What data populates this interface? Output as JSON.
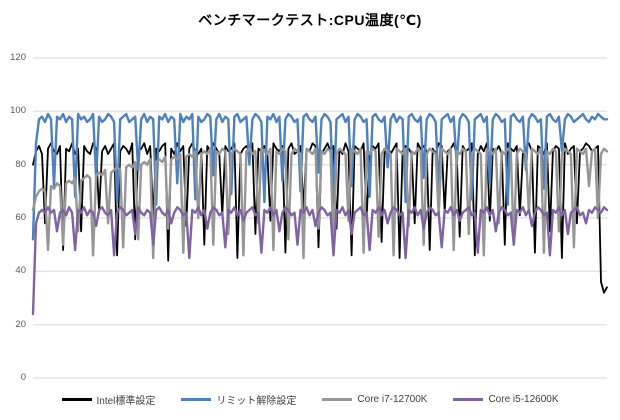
{
  "title": "ベンチマークテスト:CPU温度(℃)",
  "chart_data": {
    "type": "line",
    "title": "ベンチマークテスト:CPU温度(℃)",
    "xlabel": "",
    "ylabel": "",
    "ylim": [
      0,
      120
    ],
    "yticks": [
      0,
      20,
      40,
      60,
      80,
      100,
      120
    ],
    "x_tick_labels": [],
    "grid": "horizontal",
    "gridline_color": "#d9d9d9",
    "tick_label_color": "#595959",
    "legend_position": "bottom",
    "series": [
      {
        "name": "Intel標準設定",
        "color": "#000000",
        "values": [
          80,
          85,
          87,
          84,
          58,
          86,
          88,
          85,
          84,
          87,
          48,
          86,
          85,
          88,
          84,
          86,
          55,
          87,
          85,
          84,
          88,
          86,
          62,
          85,
          87,
          84,
          86,
          88,
          46,
          85,
          87,
          86,
          84,
          88,
          52,
          85,
          86,
          88,
          84,
          87,
          60,
          86,
          85,
          87,
          88,
          44,
          86,
          84,
          88,
          85,
          87,
          57,
          86,
          88,
          85,
          84,
          86,
          50,
          87,
          85,
          88,
          86,
          84,
          61,
          87,
          85,
          86,
          88,
          45,
          84,
          86,
          87,
          85,
          88,
          54,
          86,
          85,
          87,
          84,
          59,
          88,
          86,
          85,
          87,
          47,
          86,
          88,
          84,
          85,
          87,
          63,
          86,
          85,
          88,
          87,
          49,
          84,
          86,
          88,
          85,
          87,
          56,
          86,
          84,
          88,
          85,
          46,
          87,
          86,
          85,
          88,
          60,
          84,
          87,
          86,
          88,
          51,
          85,
          87,
          84,
          86,
          88,
          45,
          85,
          87,
          86,
          84,
          58,
          88,
          86,
          87,
          85,
          48,
          86,
          84,
          88,
          87,
          62,
          85,
          86,
          88,
          84,
          53,
          87,
          85,
          86,
          88,
          46,
          84,
          87,
          85,
          88,
          59,
          86,
          85,
          87,
          84,
          50,
          88,
          86,
          85,
          87,
          61,
          84,
          86,
          88,
          85,
          47,
          87,
          86,
          84,
          88,
          55,
          85,
          87,
          86,
          45,
          88,
          84,
          86,
          87,
          58,
          85,
          86,
          88,
          87,
          85,
          86,
          87,
          36,
          32,
          34
        ]
      },
      {
        "name": "リミット解除設定",
        "color": "#4f81bd",
        "values": [
          52,
          88,
          97,
          98,
          96,
          99,
          97,
          72,
          98,
          97,
          99,
          96,
          98,
          97,
          68,
          99,
          97,
          98,
          96,
          97,
          99,
          75,
          98,
          96,
          97,
          99,
          98,
          96,
          66,
          97,
          98,
          99,
          96,
          97,
          98,
          78,
          97,
          99,
          96,
          98,
          97,
          65,
          98,
          97,
          99,
          96,
          98,
          97,
          73,
          99,
          96,
          98,
          97,
          99,
          67,
          98,
          96,
          97,
          99,
          98,
          76,
          97,
          99,
          96,
          98,
          97,
          69,
          98,
          99,
          96,
          97,
          98,
          80,
          97,
          99,
          98,
          96,
          66,
          98,
          97,
          99,
          96,
          98,
          74,
          97,
          99,
          98,
          96,
          97,
          70,
          98,
          99,
          97,
          96,
          98,
          77,
          97,
          99,
          98,
          96,
          65,
          97,
          98,
          99,
          96,
          98,
          72,
          97,
          99,
          98,
          96,
          97,
          68,
          98,
          99,
          97,
          96,
          98,
          79,
          97,
          99,
          96,
          98,
          97,
          66,
          98,
          99,
          97,
          96,
          98,
          75,
          97,
          99,
          98,
          96,
          70,
          97,
          98,
          99,
          96,
          98,
          80,
          97,
          99,
          98,
          96,
          67,
          97,
          98,
          99,
          96,
          98,
          73,
          97,
          99,
          98,
          96,
          97,
          65,
          98,
          99,
          97,
          96,
          98,
          78,
          97,
          99,
          98,
          96,
          97,
          71,
          98,
          99,
          97,
          96,
          98,
          85,
          97,
          99,
          98,
          96,
          97,
          98,
          99,
          97,
          96,
          98,
          97,
          99,
          98,
          97,
          97
        ]
      },
      {
        "name": "Core i7-12700K",
        "color": "#969696",
        "values": [
          63,
          68,
          70,
          71,
          70,
          48,
          72,
          71,
          73,
          72,
          50,
          73,
          74,
          73,
          75,
          55,
          74,
          75,
          76,
          75,
          46,
          76,
          77,
          76,
          78,
          58,
          77,
          78,
          79,
          78,
          49,
          79,
          80,
          79,
          81,
          52,
          80,
          81,
          80,
          82,
          45,
          81,
          82,
          81,
          83,
          56,
          82,
          83,
          82,
          84,
          47,
          83,
          84,
          83,
          85,
          60,
          84,
          85,
          84,
          86,
          50,
          85,
          84,
          86,
          85,
          54,
          84,
          86,
          85,
          84,
          46,
          85,
          86,
          84,
          85,
          58,
          86,
          85,
          84,
          86,
          48,
          85,
          84,
          86,
          85,
          52,
          84,
          86,
          85,
          84,
          45,
          86,
          85,
          84,
          86,
          56,
          85,
          84,
          86,
          85,
          49,
          84,
          86,
          85,
          84,
          59,
          86,
          85,
          84,
          86,
          47,
          85,
          84,
          86,
          85,
          53,
          84,
          86,
          85,
          84,
          46,
          86,
          85,
          84,
          86,
          57,
          85,
          84,
          86,
          85,
          50,
          84,
          86,
          85,
          84,
          61,
          86,
          85,
          84,
          86,
          48,
          85,
          84,
          86,
          85,
          54,
          84,
          86,
          85,
          84,
          46,
          86,
          85,
          84,
          86,
          58,
          85,
          84,
          86,
          85,
          50,
          84,
          86,
          85,
          84,
          62,
          86,
          85,
          84,
          86,
          47,
          85,
          84,
          86,
          85,
          55,
          84,
          86,
          85,
          84,
          49,
          86,
          85,
          84,
          86,
          72,
          85,
          86,
          60,
          84,
          86,
          85
        ]
      },
      {
        "name": "Core i5-12600K",
        "color": "#8064a2",
        "values": [
          24,
          58,
          62,
          63,
          62,
          64,
          62,
          63,
          55,
          62,
          63,
          61,
          64,
          62,
          48,
          63,
          62,
          64,
          61,
          63,
          62,
          57,
          63,
          64,
          62,
          61,
          63,
          46,
          62,
          64,
          63,
          61,
          62,
          63,
          54,
          64,
          62,
          61,
          63,
          62,
          50,
          63,
          64,
          62,
          61,
          63,
          58,
          62,
          64,
          63,
          61,
          62,
          45,
          63,
          62,
          64,
          61,
          63,
          56,
          62,
          64,
          63,
          61,
          62,
          49,
          63,
          62,
          64,
          61,
          63,
          59,
          62,
          63,
          64,
          61,
          62,
          47,
          63,
          62,
          64,
          61,
          63,
          55,
          62,
          64,
          63,
          61,
          62,
          50,
          63,
          62,
          64,
          61,
          63,
          57,
          62,
          64,
          63,
          61,
          62,
          46,
          63,
          62,
          64,
          61,
          63,
          54,
          62,
          63,
          64,
          61,
          62,
          48,
          63,
          62,
          64,
          61,
          63,
          58,
          62,
          64,
          63,
          61,
          62,
          45,
          63,
          62,
          64,
          61,
          63,
          56,
          62,
          64,
          63,
          61,
          62,
          49,
          63,
          62,
          64,
          61,
          63,
          59,
          62,
          63,
          64,
          61,
          62,
          47,
          63,
          62,
          64,
          61,
          63,
          55,
          62,
          64,
          63,
          61,
          62,
          50,
          63,
          62,
          64,
          61,
          63,
          57,
          62,
          64,
          63,
          61,
          62,
          46,
          63,
          62,
          64,
          61,
          63,
          54,
          62,
          63,
          64,
          61,
          62,
          58,
          63,
          62,
          64,
          63,
          62,
          64,
          63
        ]
      }
    ]
  }
}
